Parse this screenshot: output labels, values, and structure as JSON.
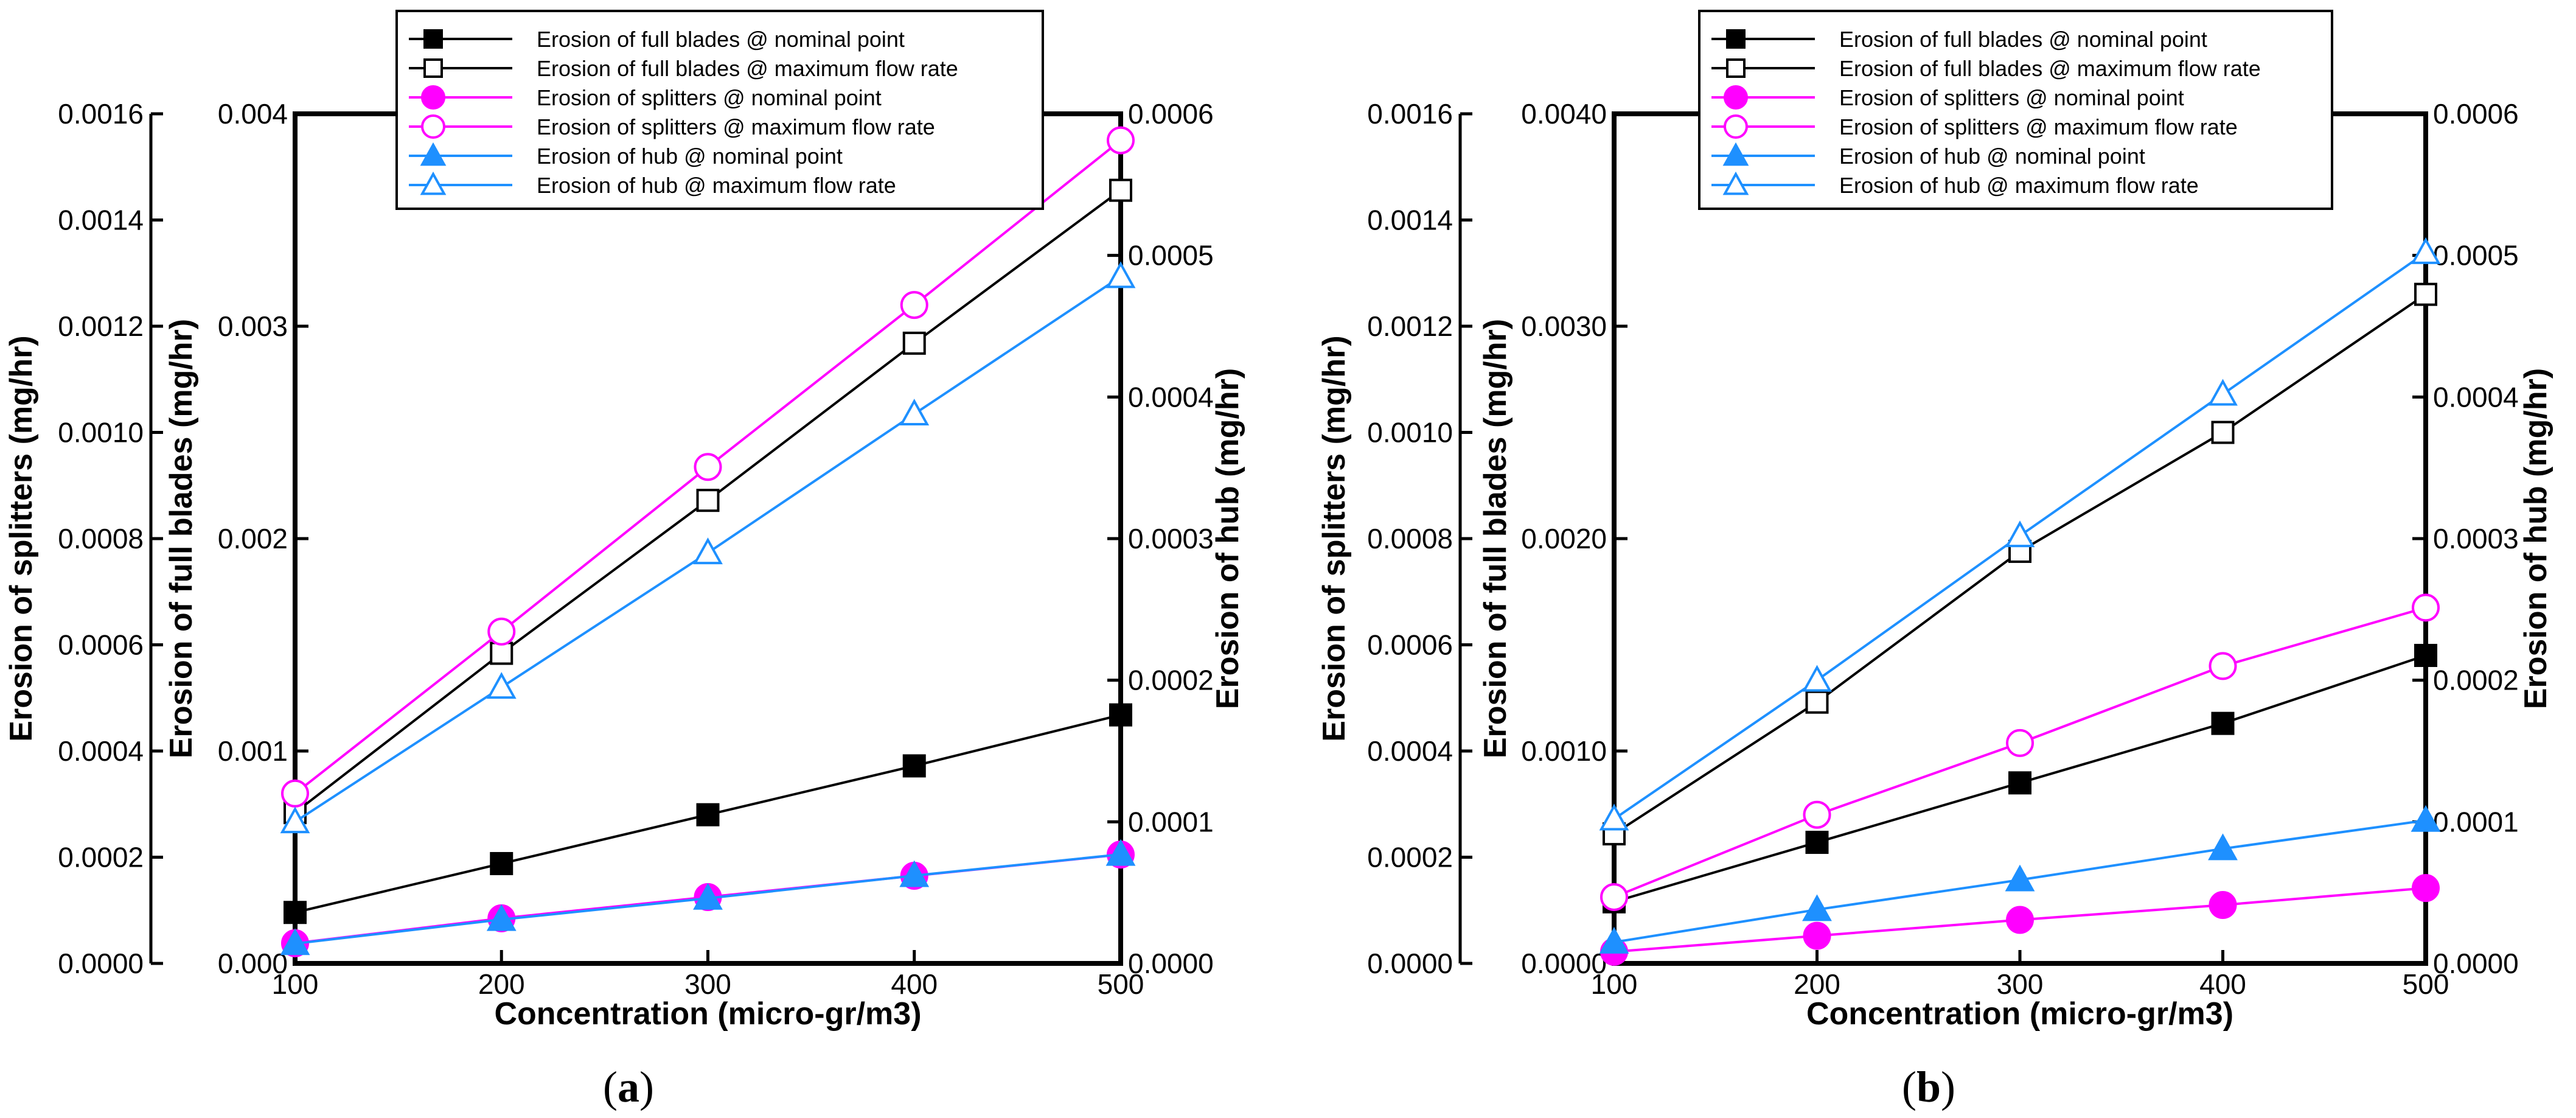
{
  "chart_data": [
    {
      "panel": "a",
      "type": "line",
      "panel_label": {
        "open": "(",
        "letter": "a",
        "close": ")"
      },
      "xlabel": "Concentration (micro-gr/m3)",
      "x": [
        100,
        200,
        300,
        400,
        500
      ],
      "xlim": [
        100,
        500
      ],
      "xticks": [
        "100",
        "200",
        "300",
        "400",
        "500"
      ],
      "axes": {
        "full_blades": {
          "label": "Erosion of full blades (mg/hr)",
          "lim": [
            0,
            0.004
          ],
          "ticks": [
            "0.000",
            "0.001",
            "0.002",
            "0.003",
            "0.004"
          ]
        },
        "splitters": {
          "label": "Erosion of splitters (mg/hr)",
          "lim": [
            0,
            0.0016
          ],
          "ticks": [
            "0.0000",
            "0.0002",
            "0.0004",
            "0.0006",
            "0.0008",
            "0.0010",
            "0.0012",
            "0.0014",
            "0.0016"
          ]
        },
        "hub": {
          "label": "Erosion of hub (mg/hr)",
          "lim": [
            0,
            0.0006
          ],
          "ticks": [
            "0.0000",
            "0.0001",
            "0.0002",
            "0.0003",
            "0.0004",
            "0.0005",
            "0.0006"
          ]
        }
      },
      "series": [
        {
          "name": "Erosion of full blades @ nominal point",
          "axis": "full_blades",
          "color": "#000000",
          "marker": "square",
          "filled": true,
          "values": [
            0.00024,
            0.00047,
            0.0007,
            0.00093,
            0.00117
          ]
        },
        {
          "name": "Erosion of full blades @ maximum flow rate",
          "axis": "full_blades",
          "color": "#000000",
          "marker": "square",
          "filled": false,
          "values": [
            0.00071,
            0.00146,
            0.00218,
            0.00292,
            0.00364
          ]
        },
        {
          "name": "Erosion of splitters @ nominal point",
          "axis": "splitters",
          "color": "#ff00ff",
          "marker": "circle",
          "filled": true,
          "values": [
            3.8e-05,
            8.5e-05,
            0.000125,
            0.000165,
            0.000205
          ]
        },
        {
          "name": "Erosion of splitters @ maximum flow rate",
          "axis": "splitters",
          "color": "#ff00ff",
          "marker": "circle",
          "filled": false,
          "values": [
            0.00032,
            0.000625,
            0.000935,
            0.00124,
            0.00155
          ]
        },
        {
          "name": "Erosion of hub @ nominal point",
          "axis": "hub",
          "color": "#1e90ff",
          "marker": "triangle",
          "filled": true,
          "values": [
            1.4e-05,
            3.1e-05,
            4.6e-05,
            6.2e-05,
            7.7e-05
          ]
        },
        {
          "name": "Erosion of hub @ maximum flow rate",
          "axis": "hub",
          "color": "#1e90ff",
          "marker": "triangle",
          "filled": false,
          "values": [
            0.0001,
            0.000195,
            0.00029,
            0.000388,
            0.000485
          ]
        }
      ]
    },
    {
      "panel": "b",
      "type": "line",
      "panel_label": {
        "open": "(",
        "letter": "b",
        "close": ")"
      },
      "xlabel": "Concentration (micro-gr/m3)",
      "x": [
        100,
        200,
        300,
        400,
        500
      ],
      "xlim": [
        100,
        500
      ],
      "xticks": [
        "100",
        "200",
        "300",
        "400",
        "500"
      ],
      "axes": {
        "full_blades": {
          "label": "Erosion of full blades (mg/hr)",
          "lim": [
            0,
            0.004
          ],
          "ticks": [
            "0.0000",
            "0.0010",
            "0.0020",
            "0.0030",
            "0.0040"
          ]
        },
        "splitters": {
          "label": "Erosion of splitters (mg/hr)",
          "lim": [
            0,
            0.0016
          ],
          "ticks": [
            "0.0000",
            "0.0002",
            "0.0004",
            "0.0006",
            "0.0008",
            "0.0010",
            "0.0012",
            "0.0014",
            "0.0016"
          ]
        },
        "hub": {
          "label": "Erosion of hub (mg/hr)",
          "lim": [
            0,
            0.0006
          ],
          "ticks": [
            "0.0000",
            "0.0001",
            "0.0002",
            "0.0003",
            "0.0004",
            "0.0005",
            "0.0006"
          ]
        }
      },
      "series": [
        {
          "name": "Erosion of full blades @ nominal point",
          "axis": "full_blades",
          "color": "#000000",
          "marker": "square",
          "filled": true,
          "values": [
            0.00029,
            0.00057,
            0.00085,
            0.00113,
            0.00145
          ]
        },
        {
          "name": "Erosion of full blades @ maximum flow rate",
          "axis": "full_blades",
          "color": "#000000",
          "marker": "square",
          "filled": false,
          "values": [
            0.00061,
            0.00123,
            0.00194,
            0.0025,
            0.00315
          ]
        },
        {
          "name": "Erosion of splitters @ nominal point",
          "axis": "splitters",
          "color": "#ff00ff",
          "marker": "circle",
          "filled": true,
          "values": [
            2.2e-05,
            5.2e-05,
            8.2e-05,
            0.00011,
            0.000142
          ]
        },
        {
          "name": "Erosion of splitters @ maximum flow rate",
          "axis": "splitters",
          "color": "#ff00ff",
          "marker": "circle",
          "filled": false,
          "values": [
            0.000125,
            0.00028,
            0.000415,
            0.00056,
            0.00067
          ]
        },
        {
          "name": "Erosion of hub @ nominal point",
          "axis": "hub",
          "color": "#1e90ff",
          "marker": "triangle",
          "filled": true,
          "values": [
            1.5e-05,
            3.8e-05,
            5.9e-05,
            8.1e-05,
            0.000101
          ]
        },
        {
          "name": "Erosion of hub @ maximum flow rate",
          "axis": "hub",
          "color": "#1e90ff",
          "marker": "triangle",
          "filled": false,
          "values": [
            0.000102,
            0.0002,
            0.000302,
            0.000402,
            0.000502
          ]
        }
      ]
    }
  ]
}
